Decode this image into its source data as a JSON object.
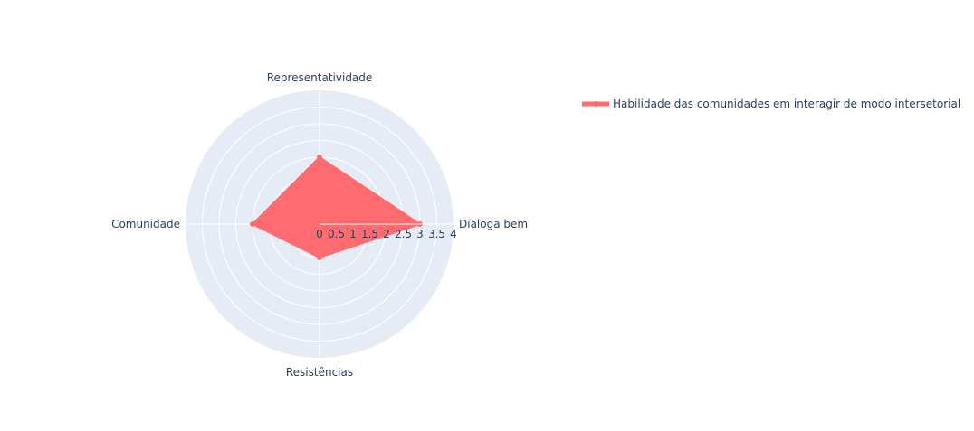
{
  "chart_data": {
    "type": "radar",
    "theta": [
      "Dialoga bem",
      "Representatividade",
      "Comunidade",
      "Resistências"
    ],
    "series": [
      {
        "name": "Habilidade das comunidades em interagir de modo intersetorial",
        "values": [
          3,
          2,
          2,
          1
        ],
        "color": "#ff6b6e",
        "fill": "toself"
      }
    ],
    "radial_range": [
      0,
      4
    ],
    "radial_ticks": [
      "0",
      "0.5",
      "1",
      "1.5",
      "2",
      "2.5",
      "3",
      "3.5",
      "4"
    ],
    "radial_tick_values": [
      0,
      0.5,
      1,
      1.5,
      2,
      2.5,
      3,
      3.5,
      4
    ],
    "grid": true,
    "legend_position": "top-right",
    "background_color": "#e5ecf6",
    "grid_color": "#ffffff",
    "text_color": "#2a3f5f"
  }
}
